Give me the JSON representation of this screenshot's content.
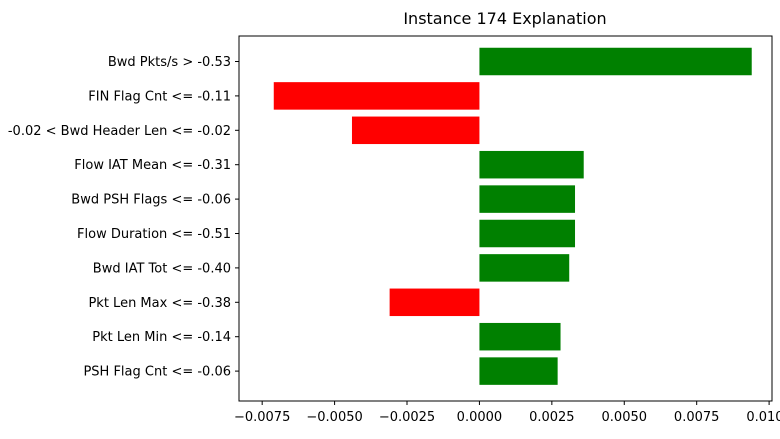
{
  "chart_data": {
    "type": "bar",
    "orientation": "horizontal",
    "title": "Instance 174 Explanation",
    "xlabel": "",
    "ylabel": "",
    "xlim": [
      -0.0083,
      0.0101
    ],
    "xticks": [
      -0.0075,
      -0.005,
      -0.0025,
      0.0,
      0.0025,
      0.005,
      0.0075,
      0.01
    ],
    "xtick_labels": [
      "−0.0075",
      "−0.0050",
      "−0.0025",
      "0.0000",
      "0.0025",
      "0.0050",
      "0.0075",
      "0.0100"
    ],
    "grid": false,
    "categories": [
      "Bwd Pkts/s > -0.53",
      "FIN Flag Cnt <= -0.11",
      "-0.02 < Bwd Header Len <= -0.02",
      "Flow IAT Mean <= -0.31",
      "Bwd PSH Flags <= -0.06",
      "Flow Duration <= -0.51",
      "Bwd IAT Tot <= -0.40",
      "Pkt Len Max <= -0.38",
      "Pkt Len Min <= -0.14",
      "PSH Flag Cnt <= -0.06"
    ],
    "values": [
      0.0094,
      -0.0071,
      -0.0044,
      0.0036,
      0.0033,
      0.0033,
      0.0031,
      -0.0031,
      0.0028,
      0.0027
    ],
    "colors": {
      "positive": "#008000",
      "negative": "#ff0000"
    }
  }
}
